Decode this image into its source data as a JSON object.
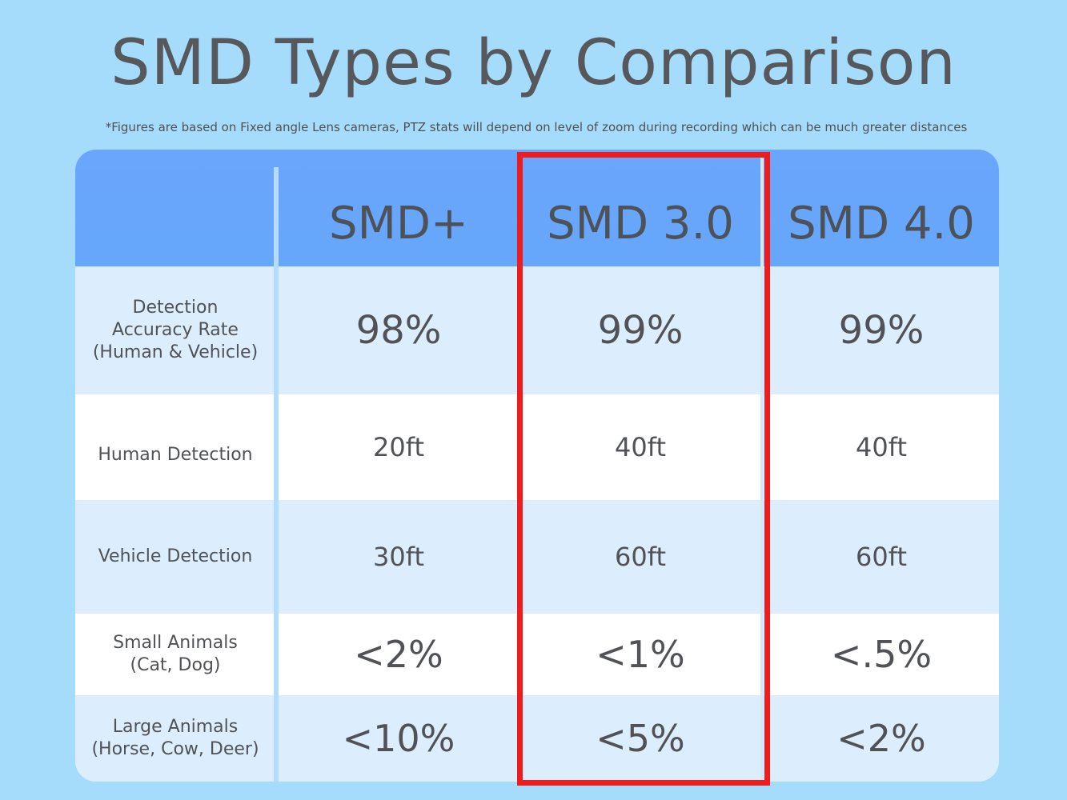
{
  "title": "SMD Types by Comparison",
  "note": "*Figures are based on Fixed angle Lens cameras, PTZ stats will depend on level of zoom during recording which can be much greater distances",
  "columns": [
    "SMD+",
    "SMD 3.0",
    "SMD 4.0"
  ],
  "highlighted_column": "SMD 3.0",
  "colors": {
    "background": "#a6dcfb",
    "header": "#66a7fb",
    "highlight": "#ee1c1c"
  },
  "rows": [
    {
      "label": "Detection\nAccuracy Rate\n(Human & Vehicle)",
      "values": [
        "98%",
        "99%",
        "99%"
      ]
    },
    {
      "label": "Human Detection",
      "values": [
        "20ft",
        "40ft",
        "40ft"
      ]
    },
    {
      "label": "Vehicle Detection",
      "values": [
        "30ft",
        "60ft",
        "60ft"
      ]
    },
    {
      "label": "Small Animals\n(Cat, Dog)",
      "values": [
        "<2%",
        "<1%",
        "<.5%"
      ]
    },
    {
      "label": "Large Animals\n(Horse, Cow, Deer)",
      "values": [
        "<10%",
        "<5%",
        "<2%"
      ]
    }
  ]
}
